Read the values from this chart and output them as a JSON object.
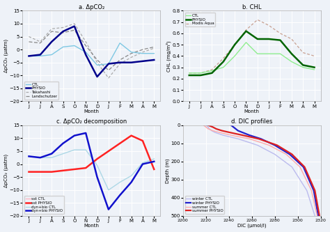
{
  "months_label": [
    "J",
    "J",
    "A",
    "S",
    "O",
    "N",
    "D",
    "J",
    "F",
    "M",
    "A",
    "M"
  ],
  "panel_a": {
    "title": "a. ΔpCO₂",
    "ylabel": "ΔpCO₂ (μatm)",
    "ylim": [
      -20,
      15
    ],
    "yticks": [
      -20,
      -15,
      -10,
      -5,
      0,
      5,
      10,
      15
    ],
    "CTL": [
      -2.5,
      -2.5,
      -2.0,
      1.0,
      1.5,
      -1.0,
      -6.0,
      -5.5,
      2.5,
      -1.0,
      -1.5,
      -1.5
    ],
    "PHYSIO": [
      -2.5,
      -2.0,
      3.0,
      7.0,
      9.0,
      -2.0,
      -10.5,
      -5.5,
      -5.0,
      -5.0,
      -4.5,
      -4.0
    ],
    "Takahashi": [
      5.0,
      3.0,
      8.0,
      8.5,
      10.0,
      3.0,
      -5.0,
      -11.0,
      -5.5,
      -3.0,
      -1.0,
      0.5
    ],
    "Landschutzer": [
      3.0,
      2.5,
      7.0,
      6.5,
      7.5,
      1.5,
      -4.0,
      -8.0,
      -4.0,
      -1.5,
      0.0,
      1.0
    ],
    "CTL_color": "#7EC8E3",
    "PHYSIO_color": "#00008B",
    "Takahashi_color": "#AAAAAA",
    "Landschutzer_color": "#888888"
  },
  "panel_b": {
    "title": "b. CHL",
    "ylabel": "CHL (mg/m³)",
    "ylim": [
      0.0,
      0.8
    ],
    "yticks": [
      0.0,
      0.1,
      0.2,
      0.3,
      0.4,
      0.5,
      0.6,
      0.7,
      0.8
    ],
    "CTL": [
      0.25,
      0.25,
      0.27,
      0.3,
      0.4,
      0.52,
      0.42,
      0.42,
      0.42,
      0.35,
      0.3,
      0.28
    ],
    "PHYSIO": [
      0.23,
      0.23,
      0.25,
      0.35,
      0.5,
      0.62,
      0.55,
      0.55,
      0.54,
      0.42,
      0.32,
      0.3
    ],
    "ModisAqua": [
      0.25,
      0.25,
      0.28,
      0.38,
      0.5,
      0.63,
      0.72,
      0.67,
      0.6,
      0.55,
      0.43,
      0.4
    ],
    "CTL_color": "#90EE90",
    "PHYSIO_color": "#006400",
    "ModisAqua_color": "#C8A090"
  },
  "panel_c": {
    "title": "c. ΔpCO₂ decomposition",
    "ylabel": "ΔpCO₂ (μatm)",
    "ylim": [
      -20,
      15
    ],
    "yticks": [
      -20,
      -15,
      -10,
      -5,
      0,
      5,
      10,
      15
    ],
    "sst_CTL": [
      -3.0,
      -3.0,
      -3.0,
      -2.5,
      -2.0,
      -1.5,
      2.0,
      5.0,
      8.0,
      11.0,
      9.0,
      -2.0
    ],
    "sst_PHYSIO": [
      -3.0,
      -3.0,
      -3.0,
      -2.5,
      -2.0,
      -1.5,
      2.0,
      5.0,
      8.0,
      11.0,
      9.0,
      -2.0
    ],
    "dynbio_CTL": [
      3.0,
      2.5,
      2.5,
      4.0,
      5.5,
      5.5,
      -0.5,
      -10.0,
      -7.0,
      -4.5,
      0.5,
      2.0
    ],
    "dynbio_PHYSIO": [
      3.0,
      2.5,
      4.0,
      8.0,
      11.0,
      12.0,
      -5.0,
      -17.5,
      -12.0,
      -7.0,
      0.0,
      1.0
    ],
    "sst_CTL_color": "#FFB6C1",
    "sst_PHYSIO_color": "#FF2222",
    "dynbio_CTL_color": "#ADD8E6",
    "dynbio_PHYSIO_color": "#1111CC"
  },
  "panel_d": {
    "title": "d. DIC profiles",
    "xlabel": "DIC (μmol/l)",
    "ylabel": "Depth (m)",
    "xlim": [
      2200,
      2320
    ],
    "xticks": [
      2200,
      2220,
      2240,
      2260,
      2280,
      2300,
      2320
    ],
    "ylim": [
      500,
      0
    ],
    "yticks": [
      0,
      100,
      200,
      300,
      400,
      500
    ],
    "winter_CTL_DIC": [
      2220,
      2221,
      2222,
      2223,
      2225,
      2228,
      2235,
      2248,
      2265,
      2280,
      2295,
      2308,
      2315
    ],
    "winter_CTL_depth": [
      0,
      5,
      10,
      20,
      30,
      40,
      55,
      75,
      110,
      160,
      230,
      360,
      500
    ],
    "winter_PHYSIO_DIC": [
      2242,
      2243,
      2244,
      2246,
      2248,
      2252,
      2258,
      2268,
      2280,
      2293,
      2305,
      2314,
      2318
    ],
    "winter_PHYSIO_depth": [
      0,
      5,
      10,
      20,
      30,
      40,
      55,
      75,
      110,
      160,
      230,
      360,
      500
    ],
    "summer_CTL_DIC": [
      2218,
      2219,
      2220,
      2222,
      2226,
      2232,
      2242,
      2258,
      2275,
      2290,
      2302,
      2312,
      2317
    ],
    "summer_CTL_depth": [
      0,
      5,
      10,
      20,
      30,
      40,
      55,
      75,
      110,
      160,
      230,
      360,
      500
    ],
    "summer_PHYSIO_DIC": [
      2222,
      2224,
      2226,
      2229,
      2234,
      2241,
      2252,
      2266,
      2282,
      2295,
      2306,
      2315,
      2319
    ],
    "summer_PHYSIO_depth": [
      0,
      5,
      10,
      20,
      30,
      40,
      55,
      75,
      110,
      160,
      230,
      360,
      500
    ],
    "winter_CTL_color": "#BBBBEE",
    "winter_PHYSIO_color": "#2222CC",
    "summer_CTL_color": "#FFAAAA",
    "summer_PHYSIO_color": "#DD2222"
  },
  "bg_color": "#eef2f8",
  "grid_color": "#ffffff"
}
